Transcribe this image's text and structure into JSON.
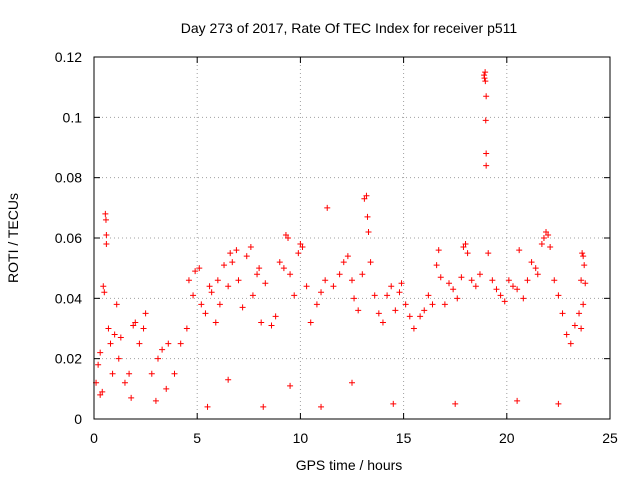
{
  "chart_data": {
    "type": "scatter",
    "title": "Day 273 of 2017, Rate Of TEC Index for receiver p511",
    "xlabel": "GPS time / hours",
    "ylabel": "ROTI / TECUs",
    "xlim": [
      0,
      25
    ],
    "ylim": [
      0,
      0.12
    ],
    "xticks": [
      0,
      5,
      10,
      15,
      20,
      25
    ],
    "yticks": [
      0,
      0.02,
      0.04,
      0.06,
      0.08,
      0.1,
      0.12
    ],
    "xtick_labels": [
      "0",
      "5",
      "10",
      "15",
      "20",
      "25"
    ],
    "ytick_labels": [
      "0",
      "0.02",
      "0.04",
      "0.06",
      "0.08",
      "0.1",
      "0.12"
    ],
    "grid": true,
    "marker": "+",
    "series": [
      {
        "name": "ROTI",
        "color": "#ff0000",
        "points": [
          [
            0.1,
            0.012
          ],
          [
            0.2,
            0.018
          ],
          [
            0.3,
            0.022
          ],
          [
            0.4,
            0.009
          ],
          [
            0.45,
            0.044
          ],
          [
            0.5,
            0.042
          ],
          [
            0.55,
            0.068
          ],
          [
            0.58,
            0.066
          ],
          [
            0.6,
            0.061
          ],
          [
            0.6,
            0.058
          ],
          [
            0.7,
            0.03
          ],
          [
            0.8,
            0.025
          ],
          [
            0.9,
            0.015
          ],
          [
            1.0,
            0.028
          ],
          [
            1.1,
            0.038
          ],
          [
            1.2,
            0.02
          ],
          [
            1.3,
            0.027
          ],
          [
            1.5,
            0.012
          ],
          [
            1.7,
            0.015
          ],
          [
            1.9,
            0.031
          ],
          [
            2.0,
            0.032
          ],
          [
            2.2,
            0.025
          ],
          [
            2.4,
            0.03
          ],
          [
            2.5,
            0.035
          ],
          [
            2.8,
            0.015
          ],
          [
            3.1,
            0.02
          ],
          [
            3.3,
            0.023
          ],
          [
            3.5,
            0.01
          ],
          [
            3.6,
            0.025
          ],
          [
            3.9,
            0.015
          ],
          [
            4.2,
            0.025
          ],
          [
            4.5,
            0.03
          ],
          [
            4.6,
            0.046
          ],
          [
            4.8,
            0.041
          ],
          [
            4.9,
            0.049
          ],
          [
            5.1,
            0.05
          ],
          [
            5.2,
            0.038
          ],
          [
            5.4,
            0.035
          ],
          [
            5.6,
            0.044
          ],
          [
            5.7,
            0.042
          ],
          [
            5.9,
            0.032
          ],
          [
            6.0,
            0.046
          ],
          [
            6.1,
            0.038
          ],
          [
            6.3,
            0.051
          ],
          [
            6.5,
            0.044
          ],
          [
            6.6,
            0.055
          ],
          [
            6.7,
            0.052
          ],
          [
            6.9,
            0.056
          ],
          [
            7.0,
            0.046
          ],
          [
            7.2,
            0.037
          ],
          [
            7.4,
            0.054
          ],
          [
            7.6,
            0.057
          ],
          [
            7.7,
            0.041
          ],
          [
            7.9,
            0.048
          ],
          [
            8.0,
            0.05
          ],
          [
            8.1,
            0.032
          ],
          [
            8.3,
            0.045
          ],
          [
            8.6,
            0.031
          ],
          [
            8.8,
            0.034
          ],
          [
            9.0,
            0.052
          ],
          [
            9.2,
            0.05
          ],
          [
            9.3,
            0.061
          ],
          [
            9.4,
            0.06
          ],
          [
            9.5,
            0.048
          ],
          [
            9.7,
            0.041
          ],
          [
            9.9,
            0.055
          ],
          [
            10.0,
            0.058
          ],
          [
            10.1,
            0.057
          ],
          [
            10.3,
            0.044
          ],
          [
            10.5,
            0.032
          ],
          [
            10.8,
            0.038
          ],
          [
            11.0,
            0.042
          ],
          [
            11.2,
            0.046
          ],
          [
            11.3,
            0.07
          ],
          [
            11.6,
            0.044
          ],
          [
            11.9,
            0.048
          ],
          [
            12.1,
            0.052
          ],
          [
            12.3,
            0.054
          ],
          [
            12.5,
            0.046
          ],
          [
            12.6,
            0.04
          ],
          [
            12.8,
            0.036
          ],
          [
            13.0,
            0.048
          ],
          [
            13.1,
            0.073
          ],
          [
            13.2,
            0.074
          ],
          [
            13.25,
            0.067
          ],
          [
            13.3,
            0.062
          ],
          [
            13.4,
            0.052
          ],
          [
            13.6,
            0.041
          ],
          [
            13.8,
            0.035
          ],
          [
            14.0,
            0.032
          ],
          [
            14.2,
            0.041
          ],
          [
            14.4,
            0.044
          ],
          [
            14.6,
            0.036
          ],
          [
            14.8,
            0.042
          ],
          [
            14.9,
            0.045
          ],
          [
            15.1,
            0.038
          ],
          [
            15.3,
            0.034
          ],
          [
            15.5,
            0.03
          ],
          [
            15.8,
            0.034
          ],
          [
            16.0,
            0.036
          ],
          [
            16.2,
            0.041
          ],
          [
            16.4,
            0.038
          ],
          [
            16.6,
            0.051
          ],
          [
            16.7,
            0.056
          ],
          [
            16.8,
            0.047
          ],
          [
            17.0,
            0.038
          ],
          [
            17.2,
            0.045
          ],
          [
            17.4,
            0.043
          ],
          [
            17.6,
            0.04
          ],
          [
            17.8,
            0.047
          ],
          [
            17.9,
            0.057
          ],
          [
            18.0,
            0.058
          ],
          [
            18.1,
            0.055
          ],
          [
            18.3,
            0.046
          ],
          [
            18.5,
            0.044
          ],
          [
            18.7,
            0.048
          ],
          [
            18.9,
            0.114
          ],
          [
            18.95,
            0.115
          ],
          [
            18.92,
            0.113
          ],
          [
            18.96,
            0.112
          ],
          [
            19.0,
            0.107
          ],
          [
            18.98,
            0.099
          ],
          [
            19.0,
            0.088
          ],
          [
            19.0,
            0.084
          ],
          [
            19.1,
            0.055
          ],
          [
            19.3,
            0.046
          ],
          [
            19.5,
            0.043
          ],
          [
            19.7,
            0.041
          ],
          [
            19.9,
            0.039
          ],
          [
            20.1,
            0.046
          ],
          [
            20.3,
            0.044
          ],
          [
            20.5,
            0.043
          ],
          [
            20.6,
            0.056
          ],
          [
            20.8,
            0.04
          ],
          [
            21.0,
            0.046
          ],
          [
            21.2,
            0.052
          ],
          [
            21.4,
            0.05
          ],
          [
            21.5,
            0.048
          ],
          [
            21.7,
            0.058
          ],
          [
            21.8,
            0.06
          ],
          [
            21.9,
            0.062
          ],
          [
            22.0,
            0.061
          ],
          [
            22.1,
            0.057
          ],
          [
            22.3,
            0.046
          ],
          [
            22.5,
            0.041
          ],
          [
            22.7,
            0.035
          ],
          [
            22.9,
            0.028
          ],
          [
            23.1,
            0.025
          ],
          [
            23.3,
            0.031
          ],
          [
            23.5,
            0.035
          ],
          [
            23.6,
            0.046
          ],
          [
            23.65,
            0.055
          ],
          [
            23.7,
            0.054
          ],
          [
            23.75,
            0.051
          ],
          [
            23.8,
            0.045
          ],
          [
            23.7,
            0.038
          ],
          [
            23.6,
            0.03
          ],
          [
            0.3,
            0.008
          ],
          [
            1.8,
            0.007
          ],
          [
            3.0,
            0.006
          ],
          [
            5.5,
            0.004
          ],
          [
            8.2,
            0.004
          ],
          [
            11.0,
            0.004
          ],
          [
            14.5,
            0.005
          ],
          [
            17.5,
            0.005
          ],
          [
            20.5,
            0.006
          ],
          [
            22.5,
            0.005
          ],
          [
            6.5,
            0.013
          ],
          [
            9.5,
            0.011
          ],
          [
            12.5,
            0.012
          ]
        ]
      }
    ]
  }
}
